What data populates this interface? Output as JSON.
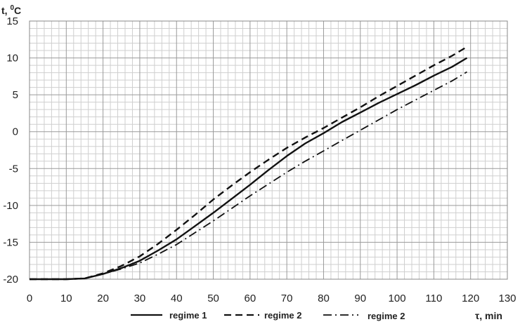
{
  "chart_data": {
    "type": "line",
    "ylabel": "t, 0C",
    "ylabel_main": "t, ",
    "ylabel_sup": "0",
    "ylabel_unit": "C",
    "xlabel": "τ, min",
    "xlim": [
      0,
      130
    ],
    "ylim": [
      -20,
      15
    ],
    "x_ticks": [
      0,
      10,
      20,
      30,
      40,
      50,
      60,
      70,
      80,
      90,
      100,
      110,
      120,
      130
    ],
    "y_ticks": [
      15,
      10,
      5,
      0,
      -5,
      -10,
      -15,
      -20
    ],
    "grid": true,
    "legend_position": "bottom",
    "series": [
      {
        "name": "regime 1",
        "style": "solid",
        "x": [
          0,
          10,
          15,
          20,
          25,
          30,
          35,
          40,
          45,
          50,
          55,
          60,
          65,
          70,
          75,
          80,
          85,
          90,
          95,
          100,
          105,
          110,
          115,
          119
        ],
        "y": [
          -20,
          -20,
          -19.9,
          -19.3,
          -18.5,
          -17.5,
          -16.1,
          -14.6,
          -12.8,
          -11,
          -9.1,
          -7.2,
          -5.2,
          -3.3,
          -1.6,
          -0.2,
          1.3,
          2.6,
          3.9,
          5.1,
          6.3,
          7.6,
          8.8,
          10
        ]
      },
      {
        "name": "regime 2",
        "style": "dashed",
        "x": [
          0,
          10,
          15,
          20,
          25,
          30,
          35,
          40,
          45,
          50,
          55,
          60,
          65,
          70,
          75,
          80,
          85,
          90,
          95,
          100,
          105,
          110,
          115,
          119
        ],
        "y": [
          -20,
          -20,
          -19.9,
          -19.2,
          -18.2,
          -16.9,
          -15.2,
          -13.3,
          -11.3,
          -9.2,
          -7.3,
          -5.5,
          -3.8,
          -2.2,
          -0.8,
          0.5,
          1.9,
          3.3,
          4.8,
          6.2,
          7.6,
          9,
          10.3,
          11.5
        ]
      },
      {
        "name": "regime 2",
        "style": "dash-dot",
        "x": [
          0,
          10,
          15,
          20,
          25,
          30,
          35,
          40,
          45,
          50,
          55,
          60,
          65,
          70,
          75,
          80,
          85,
          90,
          95,
          100,
          105,
          110,
          115,
          119
        ],
        "y": [
          -20,
          -20,
          -19.9,
          -19.3,
          -18.6,
          -17.8,
          -16.6,
          -15.3,
          -13.7,
          -12.1,
          -10.4,
          -8.7,
          -7.1,
          -5.5,
          -4,
          -2.6,
          -1.2,
          0.2,
          1.6,
          3,
          4.3,
          5.6,
          6.9,
          8.1
        ]
      }
    ]
  }
}
